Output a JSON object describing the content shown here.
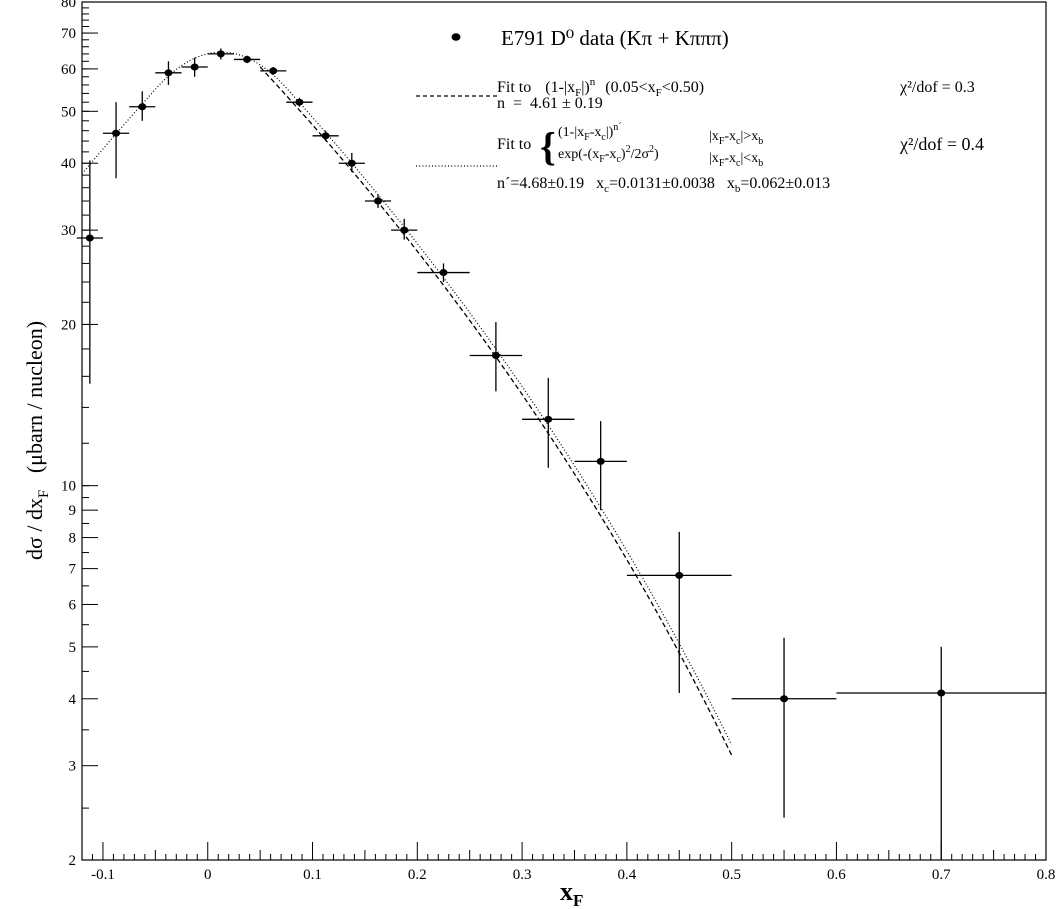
{
  "chart_data": {
    "type": "scatter",
    "xlabel_main": "x",
    "xlabel_sub": "F",
    "ylabel_pre": "dσ / dx",
    "ylabel_sub": "F",
    "ylabel_post": "   (μbarn / nucleon)",
    "xlim": [
      -0.12,
      0.8
    ],
    "ylim": [
      2,
      80
    ],
    "yscale": "log",
    "x_ticks": [
      {
        "value": -0.1,
        "label": "-0.1"
      },
      {
        "value": 0,
        "label": "0"
      },
      {
        "value": 0.1,
        "label": "0.1"
      },
      {
        "value": 0.2,
        "label": "0.2"
      },
      {
        "value": 0.3,
        "label": "0.3"
      },
      {
        "value": 0.4,
        "label": "0.4"
      },
      {
        "value": 0.5,
        "label": "0.5"
      },
      {
        "value": 0.6,
        "label": "0.6"
      },
      {
        "value": 0.7,
        "label": "0.7"
      },
      {
        "value": 0.8,
        "label": "0.8"
      }
    ],
    "y_ticks": [
      {
        "value": 2,
        "label": "2"
      },
      {
        "value": 3,
        "label": "3"
      },
      {
        "value": 4,
        "label": "4"
      },
      {
        "value": 5,
        "label": "5"
      },
      {
        "value": 6,
        "label": "6"
      },
      {
        "value": 7,
        "label": "7"
      },
      {
        "value": 8,
        "label": "8"
      },
      {
        "value": 9,
        "label": "9"
      },
      {
        "value": 10,
        "label": "10"
      },
      {
        "value": 20,
        "label": "20"
      },
      {
        "value": 30,
        "label": "30"
      },
      {
        "value": 40,
        "label": "40"
      },
      {
        "value": 50,
        "label": "50"
      },
      {
        "value": 60,
        "label": "60"
      },
      {
        "value": 70,
        "label": "70"
      },
      {
        "value": 80,
        "label": "80"
      }
    ],
    "series": [
      {
        "name": "E791 D⁰ data (Kπ + Kπππ)",
        "points": [
          {
            "x": -0.1125,
            "y": 29.0,
            "xerr": 0.0125,
            "ylo": 15.5,
            "yhi": 40.5
          },
          {
            "x": -0.0875,
            "y": 45.5,
            "xerr": 0.0125,
            "ylo": 37.5,
            "yhi": 52.0
          },
          {
            "x": -0.0625,
            "y": 51.0,
            "xerr": 0.0125,
            "ylo": 48.0,
            "yhi": 54.5
          },
          {
            "x": -0.0375,
            "y": 59.0,
            "xerr": 0.0125,
            "ylo": 56.0,
            "yhi": 62.0
          },
          {
            "x": -0.0125,
            "y": 60.5,
            "xerr": 0.0125,
            "ylo": 58.0,
            "yhi": 63.0
          },
          {
            "x": 0.0125,
            "y": 64.0,
            "xerr": 0.0125,
            "ylo": 62.5,
            "yhi": 65.5
          },
          {
            "x": 0.0375,
            "y": 62.5,
            "xerr": 0.0125,
            "ylo": 61.5,
            "yhi": 63.5
          },
          {
            "x": 0.0625,
            "y": 59.5,
            "xerr": 0.0125,
            "ylo": 58.5,
            "yhi": 60.5
          },
          {
            "x": 0.0875,
            "y": 52.0,
            "xerr": 0.0125,
            "ylo": 51.0,
            "yhi": 53.0
          },
          {
            "x": 0.1125,
            "y": 45.0,
            "xerr": 0.0125,
            "ylo": 44.0,
            "yhi": 46.0
          },
          {
            "x": 0.1375,
            "y": 40.0,
            "xerr": 0.0125,
            "ylo": 38.5,
            "yhi": 41.8
          },
          {
            "x": 0.1625,
            "y": 34.0,
            "xerr": 0.0125,
            "ylo": 33.0,
            "yhi": 35.0
          },
          {
            "x": 0.1875,
            "y": 30.0,
            "xerr": 0.0125,
            "ylo": 28.8,
            "yhi": 31.5
          },
          {
            "x": 0.225,
            "y": 25.0,
            "xerr": 0.025,
            "ylo": 24.0,
            "yhi": 26.0
          },
          {
            "x": 0.275,
            "y": 17.5,
            "xerr": 0.025,
            "ylo": 15.0,
            "yhi": 20.2
          },
          {
            "x": 0.325,
            "y": 13.3,
            "xerr": 0.025,
            "ylo": 10.8,
            "yhi": 15.9
          },
          {
            "x": 0.375,
            "y": 11.1,
            "xerr": 0.025,
            "ylo": 9.0,
            "yhi": 13.2
          },
          {
            "x": 0.45,
            "y": 6.8,
            "xerr": 0.05,
            "ylo": 4.1,
            "yhi": 8.2
          },
          {
            "x": 0.55,
            "y": 4.0,
            "xerr": 0.05,
            "ylo": 2.4,
            "yhi": 5.2
          },
          {
            "x": 0.7,
            "y": 4.1,
            "xerr": 0.1,
            "ylo": 1.95,
            "yhi": 5.0
          }
        ]
      }
    ],
    "fits": [
      {
        "id": "power_fit",
        "style": "dashed",
        "x_range": [
          0.05,
          0.5
        ],
        "n": 4.61,
        "norm": 60.5
      },
      {
        "id": "gaussian_power_fit",
        "style": "dotted",
        "x_range": [
          -0.12,
          0.5
        ],
        "n": 4.68,
        "xc": 0.0131,
        "xb": 0.062,
        "peak": 64.5
      }
    ]
  },
  "legend": {
    "data_label": "E791 D⁰ data (Kπ + Kπππ)",
    "fit1_prefix": "Fit to",
    "fit1_formula_a": "(1-|x",
    "fit1_formula_sub": "F",
    "fit1_formula_b": "|)",
    "fit1_formula_sup": "n",
    "fit1_range_a": "(0.05<x",
    "fit1_range_sub": "F",
    "fit1_range_b": "<0.50)",
    "fit1_chi": "χ²/dof = 0.3",
    "fit1_n": "n  =  4.61 ± 0.19",
    "fit2_prefix": "Fit to",
    "fit2_brace": "{",
    "fit2_row1_a": "(1-|x",
    "fit2_row1_sub1": "F",
    "fit2_row1_b": "-x",
    "fit2_row1_sub2": "c",
    "fit2_row1_c": "|)",
    "fit2_row1_sup": "n´",
    "fit2_row1_cond_a": "|x",
    "fit2_row1_cond_sub1": "F",
    "fit2_row1_cond_b": "-x",
    "fit2_row1_cond_sub2": "c",
    "fit2_row1_cond_c": "|>x",
    "fit2_row1_cond_sub3": "b",
    "fit2_row2_a": "exp(-(x",
    "fit2_row2_sub1": "F",
    "fit2_row2_b": "-x",
    "fit2_row2_sub2": "c",
    "fit2_row2_c": ")",
    "fit2_row2_sup1": "2",
    "fit2_row2_d": "/2σ",
    "fit2_row2_sup2": "2",
    "fit2_row2_e": ")",
    "fit2_row2_cond_a": "|x",
    "fit2_row2_cond_sub1": "F",
    "fit2_row2_cond_b": "-x",
    "fit2_row2_cond_sub2": "c",
    "fit2_row2_cond_c": "|<x",
    "fit2_row2_cond_sub3": "b",
    "fit2_chi": "χ²/dof = 0.4",
    "fit2_params_a": "n´=4.68±0.19   x",
    "fit2_params_sub1": "c",
    "fit2_params_b": "=0.0131±0.0038   x",
    "fit2_params_sub2": "b",
    "fit2_params_c": "=0.062±0.013"
  }
}
